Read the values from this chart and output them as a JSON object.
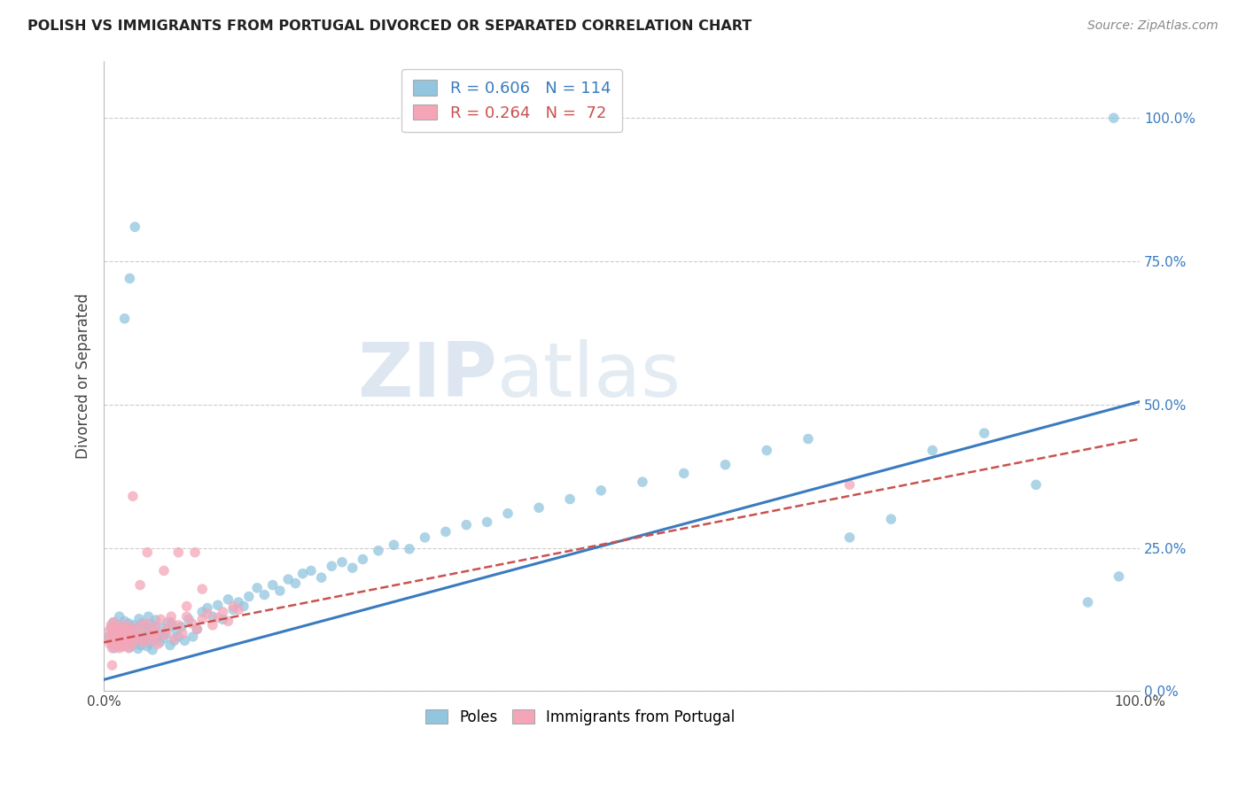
{
  "title": "POLISH VS IMMIGRANTS FROM PORTUGAL DIVORCED OR SEPARATED CORRELATION CHART",
  "source": "Source: ZipAtlas.com",
  "ylabel": "Divorced or Separated",
  "ytick_labels": [
    "0.0%",
    "25.0%",
    "50.0%",
    "75.0%",
    "100.0%"
  ],
  "ytick_positions": [
    0.0,
    0.25,
    0.5,
    0.75,
    1.0
  ],
  "xtick_labels": [
    "0.0%",
    "100.0%"
  ],
  "xtick_positions": [
    0.0,
    1.0
  ],
  "xlim": [
    0.0,
    1.0
  ],
  "ylim": [
    0.0,
    1.1
  ],
  "legend_blue_R": "R = 0.606",
  "legend_blue_N": "N = 114",
  "legend_pink_R": "R = 0.264",
  "legend_pink_N": "N =  72",
  "legend_label_blue": "Poles",
  "legend_label_pink": "Immigrants from Portugal",
  "color_blue": "#92c5de",
  "color_pink": "#f4a6b8",
  "color_line_blue": "#3a7bbf",
  "color_line_pink": "#c9524f",
  "watermark_zip": "ZIP",
  "watermark_atlas": "atlas",
  "blue_x": [
    0.005,
    0.007,
    0.008,
    0.009,
    0.01,
    0.01,
    0.011,
    0.012,
    0.013,
    0.014,
    0.015,
    0.015,
    0.016,
    0.017,
    0.018,
    0.019,
    0.02,
    0.02,
    0.021,
    0.022,
    0.023,
    0.024,
    0.025,
    0.026,
    0.027,
    0.028,
    0.029,
    0.03,
    0.031,
    0.032,
    0.033,
    0.034,
    0.035,
    0.036,
    0.037,
    0.038,
    0.039,
    0.04,
    0.041,
    0.042,
    0.043,
    0.044,
    0.045,
    0.046,
    0.047,
    0.048,
    0.049,
    0.05,
    0.052,
    0.054,
    0.056,
    0.058,
    0.06,
    0.062,
    0.064,
    0.066,
    0.068,
    0.07,
    0.072,
    0.075,
    0.078,
    0.082,
    0.086,
    0.09,
    0.095,
    0.1,
    0.105,
    0.11,
    0.115,
    0.12,
    0.125,
    0.13,
    0.135,
    0.14,
    0.148,
    0.155,
    0.163,
    0.17,
    0.178,
    0.185,
    0.192,
    0.2,
    0.21,
    0.22,
    0.23,
    0.24,
    0.25,
    0.265,
    0.28,
    0.295,
    0.31,
    0.33,
    0.35,
    0.37,
    0.39,
    0.42,
    0.45,
    0.48,
    0.52,
    0.56,
    0.6,
    0.64,
    0.68,
    0.72,
    0.76,
    0.8,
    0.85,
    0.9,
    0.95,
    0.98,
    0.02,
    0.025,
    0.03,
    0.975
  ],
  "blue_y": [
    0.095,
    0.11,
    0.085,
    0.12,
    0.1,
    0.075,
    0.105,
    0.09,
    0.115,
    0.08,
    0.095,
    0.13,
    0.088,
    0.102,
    0.078,
    0.112,
    0.098,
    0.122,
    0.085,
    0.108,
    0.092,
    0.118,
    0.076,
    0.104,
    0.095,
    0.088,
    0.115,
    0.082,
    0.096,
    0.11,
    0.074,
    0.126,
    0.092,
    0.08,
    0.118,
    0.088,
    0.104,
    0.095,
    0.112,
    0.078,
    0.13,
    0.084,
    0.098,
    0.116,
    0.072,
    0.108,
    0.09,
    0.124,
    0.095,
    0.085,
    0.11,
    0.092,
    0.1,
    0.12,
    0.08,
    0.115,
    0.088,
    0.105,
    0.095,
    0.112,
    0.088,
    0.125,
    0.095,
    0.108,
    0.138,
    0.145,
    0.13,
    0.15,
    0.125,
    0.16,
    0.142,
    0.155,
    0.148,
    0.165,
    0.18,
    0.168,
    0.185,
    0.175,
    0.195,
    0.188,
    0.205,
    0.21,
    0.198,
    0.218,
    0.225,
    0.215,
    0.23,
    0.245,
    0.255,
    0.248,
    0.268,
    0.278,
    0.29,
    0.295,
    0.31,
    0.32,
    0.335,
    0.35,
    0.365,
    0.38,
    0.395,
    0.42,
    0.44,
    0.268,
    0.3,
    0.42,
    0.45,
    0.36,
    0.155,
    0.2,
    0.65,
    0.72,
    0.81,
    1.0
  ],
  "pink_x": [
    0.004,
    0.005,
    0.006,
    0.007,
    0.008,
    0.008,
    0.009,
    0.01,
    0.01,
    0.011,
    0.012,
    0.012,
    0.013,
    0.014,
    0.015,
    0.015,
    0.016,
    0.017,
    0.018,
    0.019,
    0.02,
    0.02,
    0.021,
    0.022,
    0.023,
    0.024,
    0.025,
    0.026,
    0.027,
    0.028,
    0.03,
    0.032,
    0.034,
    0.036,
    0.038,
    0.04,
    0.042,
    0.044,
    0.046,
    0.048,
    0.05,
    0.052,
    0.055,
    0.058,
    0.061,
    0.065,
    0.068,
    0.072,
    0.076,
    0.08,
    0.085,
    0.09,
    0.095,
    0.1,
    0.105,
    0.11,
    0.115,
    0.12,
    0.125,
    0.13,
    0.028,
    0.035,
    0.042,
    0.05,
    0.058,
    0.065,
    0.072,
    0.08,
    0.088,
    0.095,
    0.72,
    0.008
  ],
  "pink_y": [
    0.09,
    0.105,
    0.082,
    0.115,
    0.098,
    0.075,
    0.108,
    0.092,
    0.12,
    0.085,
    0.099,
    0.112,
    0.08,
    0.105,
    0.095,
    0.075,
    0.11,
    0.088,
    0.102,
    0.078,
    0.115,
    0.092,
    0.085,
    0.108,
    0.098,
    0.075,
    0.112,
    0.088,
    0.102,
    0.082,
    0.095,
    0.108,
    0.092,
    0.115,
    0.085,
    0.1,
    0.118,
    0.088,
    0.105,
    0.095,
    0.112,
    0.082,
    0.125,
    0.098,
    0.108,
    0.12,
    0.092,
    0.115,
    0.1,
    0.13,
    0.118,
    0.108,
    0.125,
    0.135,
    0.115,
    0.128,
    0.138,
    0.122,
    0.148,
    0.142,
    0.34,
    0.185,
    0.242,
    0.098,
    0.21,
    0.13,
    0.242,
    0.148,
    0.242,
    0.178,
    0.36,
    0.045
  ],
  "blue_line_x": [
    0.0,
    1.0
  ],
  "blue_line_y": [
    0.02,
    0.505
  ],
  "pink_line_x": [
    0.0,
    1.0
  ],
  "pink_line_y": [
    0.085,
    0.44
  ]
}
